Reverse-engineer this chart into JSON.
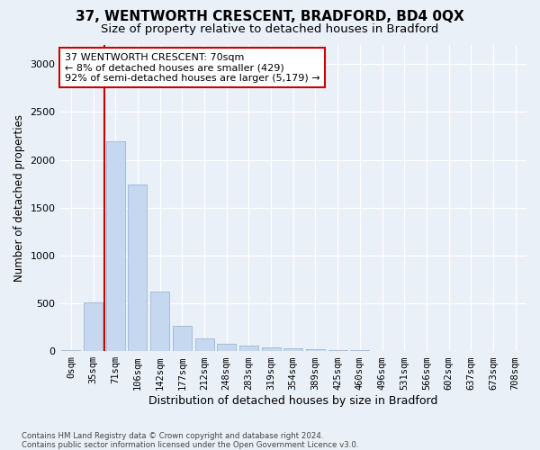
{
  "title_line1": "37, WENTWORTH CRESCENT, BRADFORD, BD4 0QX",
  "title_line2": "Size of property relative to detached houses in Bradford",
  "xlabel": "Distribution of detached houses by size in Bradford",
  "ylabel": "Number of detached properties",
  "categories": [
    "0sqm",
    "35sqm",
    "71sqm",
    "106sqm",
    "142sqm",
    "177sqm",
    "212sqm",
    "248sqm",
    "283sqm",
    "319sqm",
    "354sqm",
    "389sqm",
    "425sqm",
    "460sqm",
    "496sqm",
    "531sqm",
    "566sqm",
    "602sqm",
    "637sqm",
    "673sqm",
    "708sqm"
  ],
  "values": [
    15,
    510,
    2190,
    1740,
    625,
    265,
    130,
    80,
    55,
    40,
    28,
    18,
    12,
    8,
    5,
    3,
    2,
    2,
    1,
    1,
    0
  ],
  "bar_color": "#c5d8f0",
  "bar_edge_color": "#9ab8d8",
  "vline_x": 1.5,
  "vline_color": "#cc0000",
  "annotation_text": "37 WENTWORTH CRESCENT: 70sqm\n← 8% of detached houses are smaller (429)\n92% of semi-detached houses are larger (5,179) →",
  "annotation_box_facecolor": "#ffffff",
  "annotation_box_edgecolor": "#cc0000",
  "ylim": [
    0,
    3200
  ],
  "yticks": [
    0,
    500,
    1000,
    1500,
    2000,
    2500,
    3000
  ],
  "bg_color": "#eaf0f8",
  "grid_color": "#ffffff",
  "footnote": "Contains HM Land Registry data © Crown copyright and database right 2024.\nContains public sector information licensed under the Open Government Licence v3.0."
}
